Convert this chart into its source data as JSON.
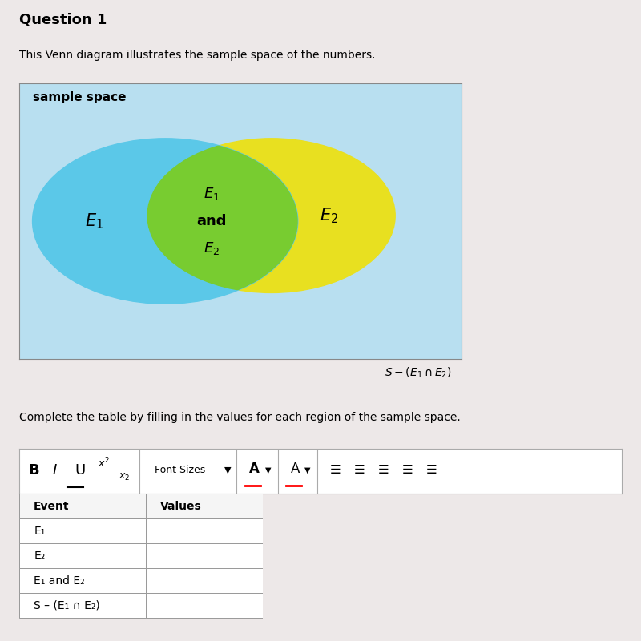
{
  "title": "Question 1",
  "subtitle": "This Venn diagram illustrates the sample space of the numbers.",
  "venn_label": "sample space",
  "circle1_color": "#5BC8E8",
  "circle2_color": "#E8E020",
  "overlap_color": "#78CC30",
  "background_color": "#B8DFF0",
  "page_bg": "#EDE8E8",
  "complete_text": "Complete the table by filling in the values for each region of the sample space.",
  "table_header": [
    "Event",
    "Values"
  ],
  "table_events": [
    "E₁",
    "E₂",
    "E₁ and E₂",
    "S – (E₁ ∩ E₂)"
  ]
}
